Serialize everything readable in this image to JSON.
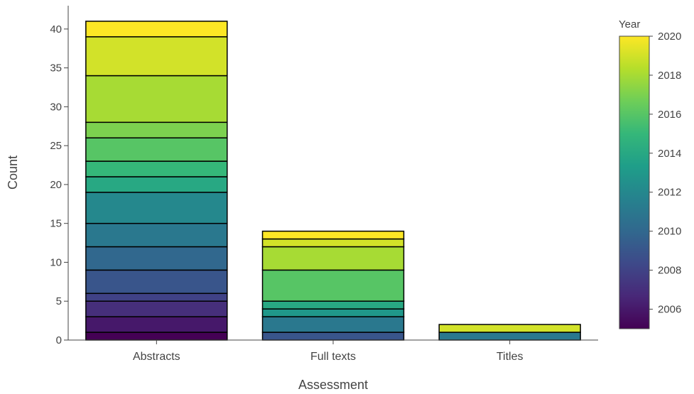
{
  "chart_data": {
    "type": "bar",
    "stacked": true,
    "xlabel": "Assessment",
    "ylabel": "Count",
    "ylim": [
      0,
      43
    ],
    "yticks": [
      0,
      5,
      10,
      15,
      20,
      25,
      30,
      35,
      40
    ],
    "grid": false,
    "categories": [
      "Abstracts",
      "Full texts",
      "Titles"
    ],
    "stacks": [
      {
        "category": "Abstracts",
        "segments": [
          {
            "year": 2005,
            "count": 1
          },
          {
            "year": 2006,
            "count": 2
          },
          {
            "year": 2007,
            "count": 2
          },
          {
            "year": 2008,
            "count": 1
          },
          {
            "year": 2009,
            "count": 3
          },
          {
            "year": 2010,
            "count": 3
          },
          {
            "year": 2011,
            "count": 3
          },
          {
            "year": 2012,
            "count": 4
          },
          {
            "year": 2014,
            "count": 2
          },
          {
            "year": 2015,
            "count": 2
          },
          {
            "year": 2016,
            "count": 3
          },
          {
            "year": 2017,
            "count": 2
          },
          {
            "year": 2018,
            "count": 6
          },
          {
            "year": 2019,
            "count": 5
          },
          {
            "year": 2020,
            "count": 2
          }
        ]
      },
      {
        "category": "Full texts",
        "segments": [
          {
            "year": 2009,
            "count": 1
          },
          {
            "year": 2011,
            "count": 2
          },
          {
            "year": 2013,
            "count": 1
          },
          {
            "year": 2014,
            "count": 1
          },
          {
            "year": 2016,
            "count": 4
          },
          {
            "year": 2018,
            "count": 3
          },
          {
            "year": 2019,
            "count": 1
          },
          {
            "year": 2020,
            "count": 1
          }
        ]
      },
      {
        "category": "Titles",
        "segments": [
          {
            "year": 2011,
            "count": 1
          },
          {
            "year": 2019,
            "count": 1
          }
        ]
      }
    ],
    "colorbar": {
      "title": "Year",
      "range": [
        2005,
        2020
      ],
      "ticks": [
        2006,
        2008,
        2010,
        2012,
        2014,
        2016,
        2018,
        2020
      ],
      "colorscale": "viridis",
      "placement": "right"
    }
  }
}
